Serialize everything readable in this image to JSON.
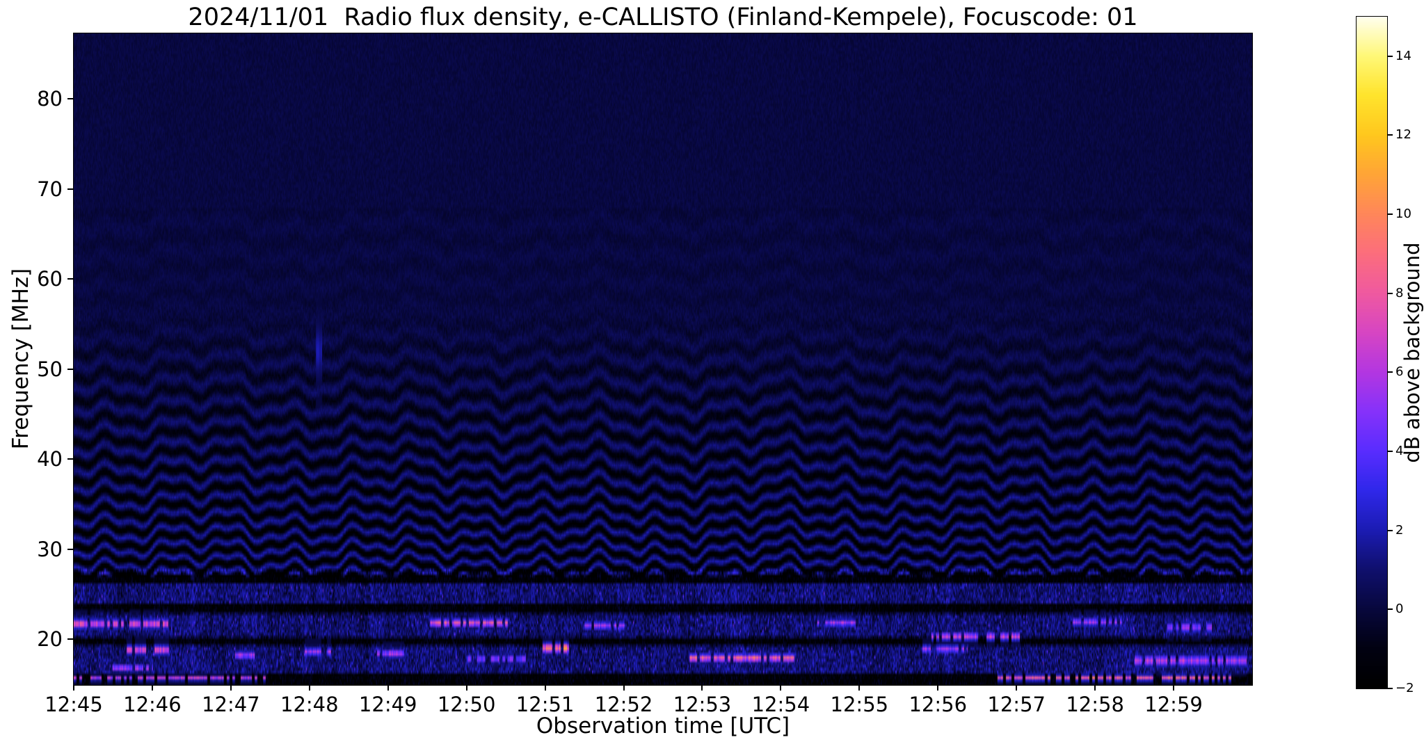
{
  "figure": {
    "title": "2024/11/01  Radio flux density, e-CALLISTO (Finland-Kempele), Focuscode: 01",
    "xlabel": "Observation time [UTC]",
    "ylabel": "Frequency [MHz]",
    "colorbar_label": "dB above background",
    "date": "2024/11/01",
    "instrument": "e-CALLISTO",
    "station": "Finland-Kempele",
    "focuscode": "01"
  },
  "chart_data": {
    "type": "heatmap",
    "title": "2024/11/01  Radio flux density, e-CALLISTO (Finland-Kempele), Focuscode: 01",
    "xlabel": "Observation time [UTC]",
    "ylabel": "Frequency [MHz]",
    "grid": false,
    "x_ticks": [
      "12:45",
      "12:46",
      "12:47",
      "12:48",
      "12:49",
      "12:50",
      "12:51",
      "12:52",
      "12:53",
      "12:54",
      "12:55",
      "12:56",
      "12:57",
      "12:58",
      "12:59"
    ],
    "x_range": {
      "start_utc": "12:45:00",
      "end_utc": "13:00:00",
      "duration_s": 900
    },
    "y_ticks_mhz": [
      80,
      70,
      60,
      50,
      40,
      30,
      20
    ],
    "y_range_mhz": [
      14.9,
      87.3
    ],
    "colorbar": {
      "label": "dB above background",
      "tick_labels": [
        "14",
        "12",
        "10",
        "8",
        "6",
        "4",
        "2",
        "0",
        "−2"
      ],
      "tick_values": [
        14,
        12,
        10,
        8,
        6,
        4,
        2,
        0,
        -2
      ],
      "value_range_db": [
        -2,
        15
      ],
      "colormap_stops": [
        {
          "v": -2.0,
          "rgb": [
            0,
            0,
            0
          ]
        },
        {
          "v": -1.0,
          "rgb": [
            2,
            2,
            18
          ]
        },
        {
          "v": 0.0,
          "rgb": [
            8,
            8,
            62
          ]
        },
        {
          "v": 1.0,
          "rgb": [
            16,
            16,
            110
          ]
        },
        {
          "v": 2.0,
          "rgb": [
            28,
            28,
            180
          ]
        },
        {
          "v": 3.0,
          "rgb": [
            48,
            40,
            235
          ]
        },
        {
          "v": 4.0,
          "rgb": [
            90,
            45,
            255
          ]
        },
        {
          "v": 5.0,
          "rgb": [
            135,
            50,
            250
          ]
        },
        {
          "v": 6.0,
          "rgb": [
            180,
            55,
            225
          ]
        },
        {
          "v": 7.0,
          "rgb": [
            215,
            70,
            195
          ]
        },
        {
          "v": 8.0,
          "rgb": [
            240,
            90,
            160
          ]
        },
        {
          "v": 9.0,
          "rgb": [
            252,
            110,
            125
          ]
        },
        {
          "v": 10.0,
          "rgb": [
            255,
            135,
            90
          ]
        },
        {
          "v": 11.0,
          "rgb": [
            255,
            165,
            55
          ]
        },
        {
          "v": 12.0,
          "rgb": [
            255,
            200,
            30
          ]
        },
        {
          "v": 13.0,
          "rgb": [
            255,
            228,
            45
          ]
        },
        {
          "v": 14.0,
          "rgb": [
            255,
            248,
            120
          ]
        },
        {
          "v": 15.0,
          "rgb": [
            255,
            255,
            240
          ]
        }
      ]
    },
    "features": [
      "smooth dark navy noise background above ~55 MHz",
      "wavy horizontal interference fringes between ~28 and ~55 MHz, strongest near 29-32 MHz, wobbling slowly in time",
      "broadband noisy RFI bands with blue/magenta speckle below ~28 MHz",
      "black quiet lanes near 15-16.3, 19.5-20.2, 23-24 and 26.4-27.3 MHz",
      "bright narrowband orange/yellow bursts near 16-22 MHz scattered through the interval",
      "long bright streak at ~15.7 MHz from ~12:56:45 to ~12:59:50"
    ],
    "model": {
      "base_db": 0.08,
      "upper_noise_db": 0.35,
      "fringe_zone_noise_db": 0.45,
      "low_band_top_mhz": 27.8,
      "low_band_noise_db": 1.5,
      "low_band_colmod_db": 1.2,
      "dark_rows_mhz": [
        [
          14.9,
          16.28
        ],
        [
          19.45,
          20.2
        ],
        [
          22.95,
          23.9
        ],
        [
          26.35,
          27.3
        ]
      ],
      "dark_row_drop_db": 1.9,
      "bright_rows_mhz": [
        [
          16.35,
          19.25
        ],
        [
          20.3,
          22.8
        ],
        [
          24.0,
          26.2
        ]
      ],
      "bright_row_lift_db": 0.75,
      "fringe": {
        "f_start_mhz": 27.0,
        "f_end_mhz": 57.0,
        "faint_end_mhz": 68.0,
        "faint_amp_db": 0.17,
        "amp_db": 2.3,
        "amp_falloff_exp": 0.85,
        "period_base_mhz": 1.55,
        "period_slope": 0.05,
        "trough_bias": -0.18,
        "wobble_amp_mhz": [
          0.55,
          0.35,
          0.5
        ],
        "wobble_period_s": [
          47,
          21,
          149
        ],
        "wobble_phase": [
          1.3,
          4.1,
          0.6
        ]
      }
    },
    "bursts": [
      {
        "t0_s": 0,
        "t1_s": 75,
        "f_mhz": 21.7,
        "width_mhz": 0.45,
        "peak_db": 9.5
      },
      {
        "t0_s": 40,
        "t1_s": 72,
        "f_mhz": 18.8,
        "width_mhz": 0.45,
        "peak_db": 9.0
      },
      {
        "t0_s": 30,
        "t1_s": 60,
        "f_mhz": 16.8,
        "width_mhz": 0.35,
        "peak_db": 7.5
      },
      {
        "t0_s": 118,
        "t1_s": 140,
        "f_mhz": 18.2,
        "width_mhz": 0.4,
        "peak_db": 7.5
      },
      {
        "t0_s": 175,
        "t1_s": 196,
        "f_mhz": 18.6,
        "width_mhz": 0.4,
        "peak_db": 7.0
      },
      {
        "t0_s": 228,
        "t1_s": 252,
        "f_mhz": 18.4,
        "width_mhz": 0.4,
        "peak_db": 7.5
      },
      {
        "t0_s": 272,
        "t1_s": 332,
        "f_mhz": 21.8,
        "width_mhz": 0.4,
        "peak_db": 9.5
      },
      {
        "t0_s": 300,
        "t1_s": 345,
        "f_mhz": 17.8,
        "width_mhz": 0.4,
        "peak_db": 6.5
      },
      {
        "t0_s": 358,
        "t1_s": 380,
        "f_mhz": 19.0,
        "width_mhz": 0.5,
        "peak_db": 12.0
      },
      {
        "t0_s": 390,
        "t1_s": 420,
        "f_mhz": 21.5,
        "width_mhz": 0.4,
        "peak_db": 7.0
      },
      {
        "t0_s": 470,
        "t1_s": 552,
        "f_mhz": 17.9,
        "width_mhz": 0.4,
        "peak_db": 10.5
      },
      {
        "t0_s": 568,
        "t1_s": 600,
        "f_mhz": 21.8,
        "width_mhz": 0.35,
        "peak_db": 7.0
      },
      {
        "t0_s": 648,
        "t1_s": 682,
        "f_mhz": 18.9,
        "width_mhz": 0.4,
        "peak_db": 7.0
      },
      {
        "t0_s": 655,
        "t1_s": 722,
        "f_mhz": 20.3,
        "width_mhz": 0.4,
        "peak_db": 8.5
      },
      {
        "t0_s": 0,
        "t1_s": 150,
        "f_mhz": 15.65,
        "width_mhz": 0.22,
        "peak_db": 8.5
      },
      {
        "t0_s": 705,
        "t1_s": 888,
        "f_mhz": 15.7,
        "width_mhz": 0.28,
        "peak_db": 10.0
      },
      {
        "t0_s": 810,
        "t1_s": 895,
        "f_mhz": 17.6,
        "width_mhz": 0.55,
        "peak_db": 7.5
      },
      {
        "t0_s": 760,
        "t1_s": 800,
        "f_mhz": 21.9,
        "width_mhz": 0.4,
        "peak_db": 7.0
      },
      {
        "t0_s": 835,
        "t1_s": 870,
        "f_mhz": 21.3,
        "width_mhz": 0.5,
        "peak_db": 6.5
      },
      {
        "t0_s": 185,
        "t1_s": 189,
        "f_mhz": 52.0,
        "width_mhz": 2.5,
        "peak_db": 2.2
      }
    ]
  }
}
